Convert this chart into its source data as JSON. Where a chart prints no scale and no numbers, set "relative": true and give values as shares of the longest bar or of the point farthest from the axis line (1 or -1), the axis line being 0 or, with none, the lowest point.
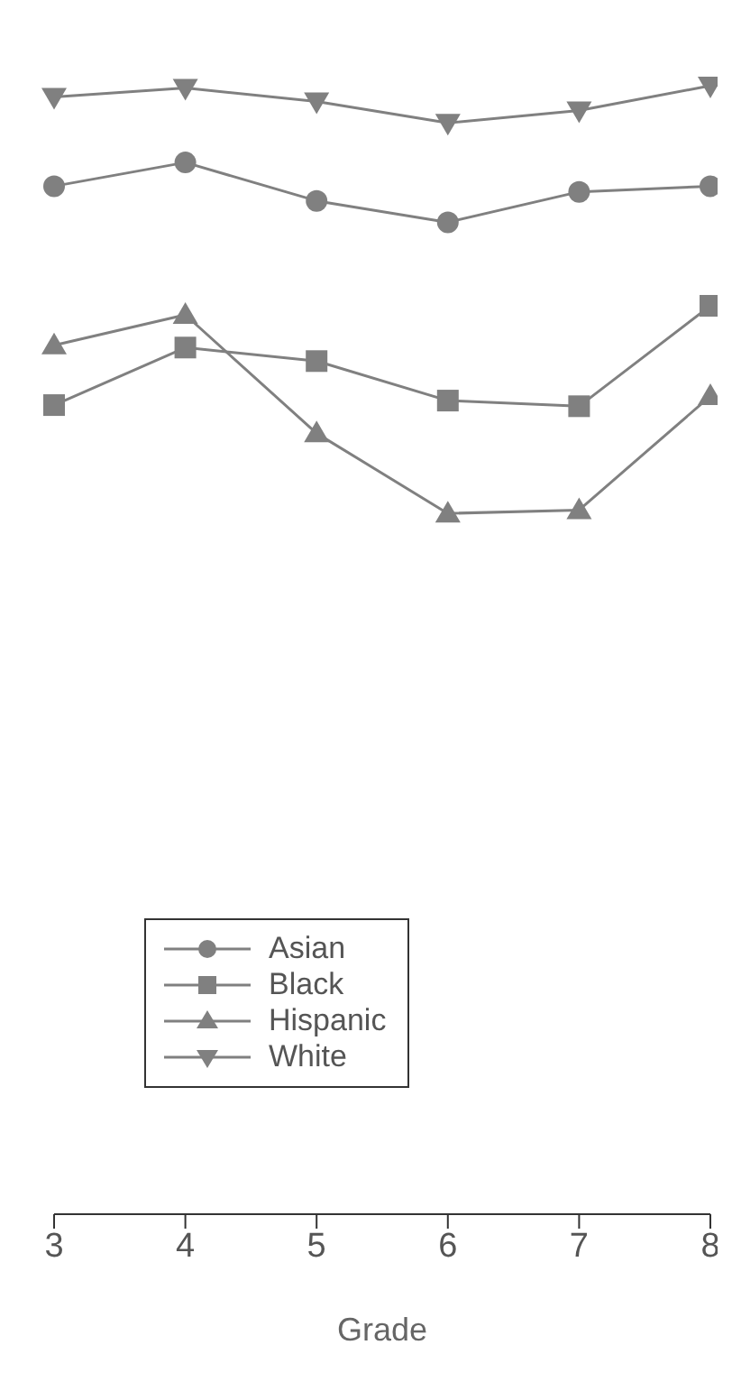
{
  "chart_data": {
    "type": "line",
    "xlabel": "Grade",
    "categories": [
      "3",
      "4",
      "5",
      "6",
      "7",
      "8"
    ],
    "relative": true,
    "legend": "bottom left",
    "grid": false,
    "series": [
      {
        "name": "Asian",
        "color": "#808080",
        "marker": "circle",
        "values": [
          0.911,
          0.932,
          0.898,
          0.879,
          0.906,
          0.911
        ]
      },
      {
        "name": "Black",
        "color": "#808080",
        "marker": "square",
        "values": [
          0.717,
          0.768,
          0.756,
          0.721,
          0.716,
          0.805
        ]
      },
      {
        "name": "Hispanic",
        "color": "#808080",
        "marker": "triangle",
        "values": [
          0.77,
          0.797,
          0.692,
          0.621,
          0.624,
          0.725
        ]
      },
      {
        "name": "White",
        "color": "#808080",
        "marker": "triangle-down",
        "values": [
          0.99,
          0.998,
          0.986,
          0.967,
          0.978,
          1
        ]
      }
    ]
  }
}
